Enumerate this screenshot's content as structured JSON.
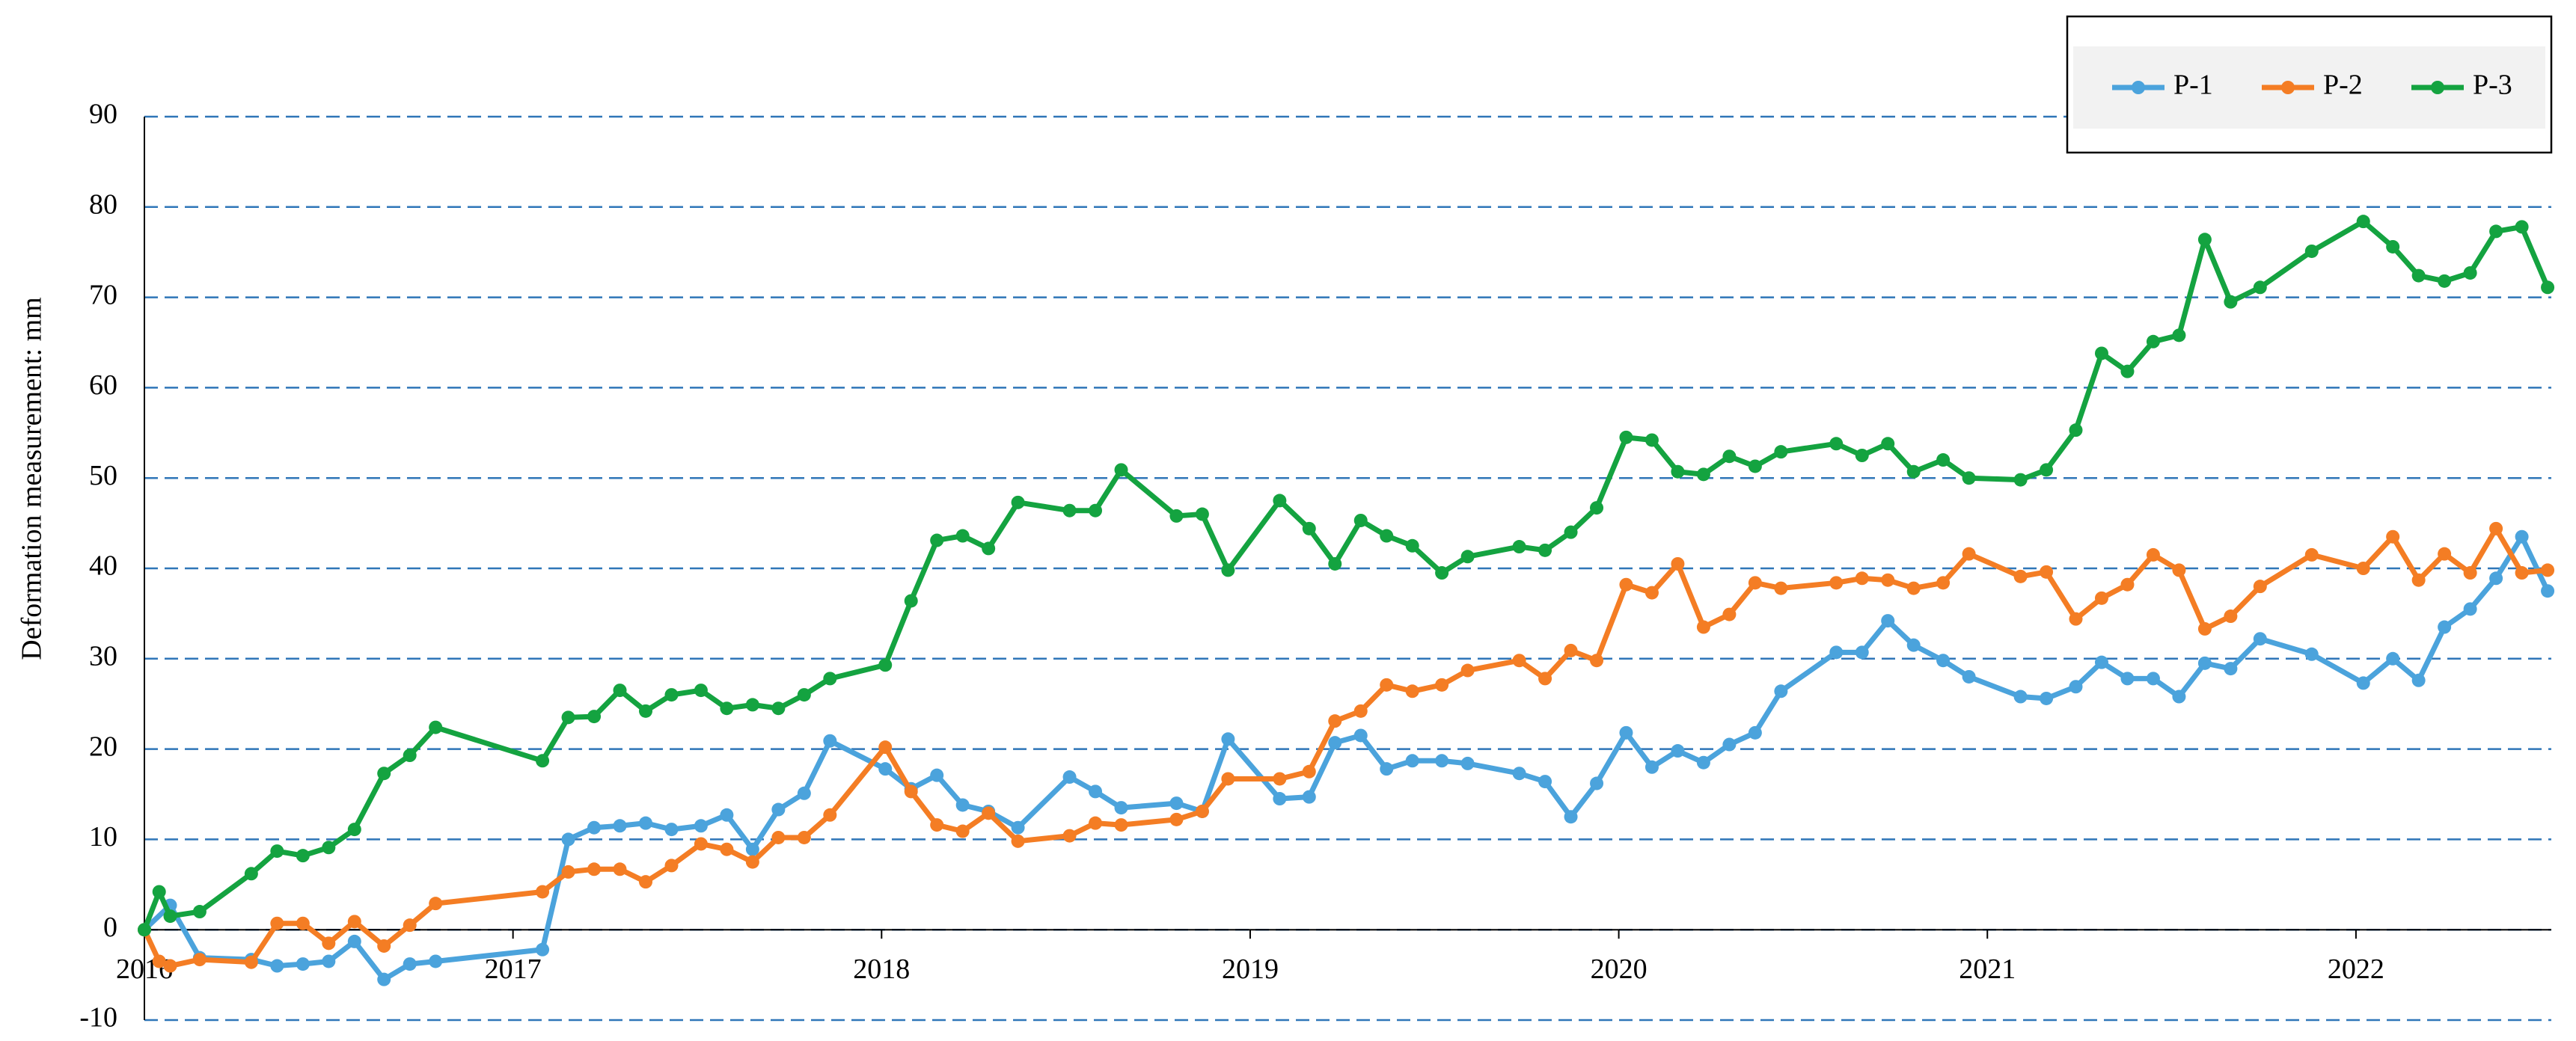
{
  "chart_data": {
    "type": "line",
    "y_label": "Deformation measurement: mm",
    "xlim": [
      2016,
      2022.53
    ],
    "xticks": [
      2016,
      2017,
      2018,
      2019,
      2020,
      2021,
      2022
    ],
    "ylim": [
      -10,
      90
    ],
    "yticks": [
      -10,
      0,
      10,
      20,
      30,
      40,
      50,
      60,
      70,
      80,
      90
    ],
    "grid": true,
    "legend": "upper right",
    "series": [
      {
        "name": "P-1",
        "color": "#4ba3dc",
        "x": [
          2016.0,
          2016.07,
          2016.15,
          2016.29,
          2016.36,
          2016.43,
          2016.5,
          2016.57,
          2016.65,
          2016.72,
          2016.79,
          2017.08,
          2017.15,
          2017.22,
          2017.29,
          2017.36,
          2017.43,
          2017.51,
          2017.58,
          2017.65,
          2017.72,
          2017.79,
          2017.86,
          2018.01,
          2018.08,
          2018.15,
          2018.22,
          2018.29,
          2018.37,
          2018.51,
          2018.58,
          2018.65,
          2018.8,
          2018.87,
          2018.94,
          2019.08,
          2019.16,
          2019.23,
          2019.3,
          2019.37,
          2019.44,
          2019.52,
          2019.59,
          2019.73,
          2019.8,
          2019.87,
          2019.94,
          2020.02,
          2020.09,
          2020.16,
          2020.23,
          2020.3,
          2020.37,
          2020.44,
          2020.59,
          2020.66,
          2020.73,
          2020.8,
          2020.88,
          2020.95,
          2021.09,
          2021.16,
          2021.24,
          2021.31,
          2021.38,
          2021.45,
          2021.52,
          2021.59,
          2021.66,
          2021.74,
          2021.88,
          2022.02,
          2022.1,
          2022.17,
          2022.24,
          2022.31,
          2022.38,
          2022.45,
          2022.52
        ],
        "values": [
          0,
          2.7,
          -3.1,
          -3.3,
          -4.0,
          -3.8,
          -3.5,
          -1.3,
          -5.5,
          -3.8,
          -3.5,
          -2.2,
          10.0,
          11.3,
          11.5,
          11.8,
          11.1,
          11.5,
          12.7,
          8.9,
          13.3,
          15.1,
          20.9,
          17.8,
          15.6,
          17.1,
          13.8,
          13.1,
          11.3,
          16.9,
          15.3,
          13.5,
          14.0,
          13.1,
          21.1,
          14.5,
          14.7,
          20.7,
          21.5,
          17.8,
          18.7,
          18.7,
          18.4,
          17.3,
          16.4,
          12.5,
          16.2,
          21.8,
          18.0,
          19.8,
          18.5,
          20.5,
          21.8,
          26.4,
          30.7,
          30.7,
          34.2,
          31.5,
          29.8,
          28.0,
          25.8,
          25.6,
          26.9,
          29.6,
          27.8,
          27.8,
          25.8,
          29.5,
          28.9,
          32.2,
          30.5,
          27.3,
          30.0,
          27.6,
          33.5,
          35.5,
          38.9,
          43.5,
          37.5
        ]
      },
      {
        "name": "P-2",
        "color": "#f47d24",
        "x": [
          2016.0,
          2016.04,
          2016.07,
          2016.15,
          2016.29,
          2016.36,
          2016.43,
          2016.5,
          2016.57,
          2016.65,
          2016.72,
          2016.79,
          2017.08,
          2017.15,
          2017.22,
          2017.29,
          2017.36,
          2017.43,
          2017.51,
          2017.58,
          2017.65,
          2017.72,
          2017.79,
          2017.86,
          2018.01,
          2018.08,
          2018.15,
          2018.22,
          2018.29,
          2018.37,
          2018.51,
          2018.58,
          2018.65,
          2018.8,
          2018.87,
          2018.94,
          2019.08,
          2019.16,
          2019.23,
          2019.3,
          2019.37,
          2019.44,
          2019.52,
          2019.59,
          2019.73,
          2019.8,
          2019.87,
          2019.94,
          2020.02,
          2020.09,
          2020.16,
          2020.23,
          2020.3,
          2020.37,
          2020.44,
          2020.59,
          2020.66,
          2020.73,
          2020.8,
          2020.88,
          2020.95,
          2021.09,
          2021.16,
          2021.24,
          2021.31,
          2021.38,
          2021.45,
          2021.52,
          2021.59,
          2021.66,
          2021.74,
          2021.88,
          2022.02,
          2022.1,
          2022.17,
          2022.24,
          2022.31,
          2022.38,
          2022.45,
          2022.52
        ],
        "values": [
          0,
          -3.5,
          -4.0,
          -3.3,
          -3.6,
          0.7,
          0.7,
          -1.5,
          0.9,
          -1.8,
          0.5,
          2.9,
          4.2,
          6.4,
          6.7,
          6.7,
          5.3,
          7.1,
          9.5,
          8.9,
          7.5,
          10.2,
          10.2,
          12.7,
          20.2,
          15.3,
          11.6,
          10.9,
          12.9,
          9.8,
          10.4,
          11.8,
          11.6,
          12.2,
          13.1,
          16.7,
          16.7,
          17.5,
          23.1,
          24.2,
          27.1,
          26.4,
          27.1,
          28.7,
          29.8,
          27.8,
          30.9,
          29.8,
          38.2,
          37.3,
          40.5,
          33.5,
          34.9,
          38.4,
          37.8,
          38.4,
          38.9,
          38.7,
          37.8,
          38.4,
          41.6,
          39.1,
          39.6,
          34.4,
          36.7,
          38.2,
          41.5,
          39.8,
          33.3,
          34.7,
          38.0,
          41.5,
          40.0,
          43.5,
          38.7,
          41.6,
          39.5,
          44.4,
          39.5,
          39.8
        ]
      },
      {
        "name": "P-3",
        "color": "#14a340",
        "x": [
          2016.0,
          2016.04,
          2016.07,
          2016.15,
          2016.29,
          2016.36,
          2016.43,
          2016.5,
          2016.57,
          2016.65,
          2016.72,
          2016.79,
          2017.08,
          2017.15,
          2017.22,
          2017.29,
          2017.36,
          2017.43,
          2017.51,
          2017.58,
          2017.65,
          2017.72,
          2017.79,
          2017.86,
          2018.01,
          2018.08,
          2018.15,
          2018.22,
          2018.29,
          2018.37,
          2018.51,
          2018.58,
          2018.65,
          2018.8,
          2018.87,
          2018.94,
          2019.08,
          2019.16,
          2019.23,
          2019.3,
          2019.37,
          2019.44,
          2019.52,
          2019.59,
          2019.73,
          2019.8,
          2019.87,
          2019.94,
          2020.02,
          2020.09,
          2020.16,
          2020.23,
          2020.3,
          2020.37,
          2020.44,
          2020.59,
          2020.66,
          2020.73,
          2020.8,
          2020.88,
          2020.95,
          2021.09,
          2021.16,
          2021.24,
          2021.31,
          2021.38,
          2021.45,
          2021.52,
          2021.59,
          2021.66,
          2021.74,
          2021.88,
          2022.02,
          2022.1,
          2022.17,
          2022.24,
          2022.31,
          2022.38,
          2022.45,
          2022.52
        ],
        "values": [
          0,
          4.2,
          1.5,
          2.0,
          6.2,
          8.7,
          8.2,
          9.1,
          11.1,
          17.3,
          19.3,
          22.4,
          18.7,
          23.5,
          23.6,
          26.5,
          24.2,
          26.0,
          26.5,
          24.5,
          24.9,
          24.5,
          26.0,
          27.8,
          29.3,
          36.4,
          43.1,
          43.6,
          42.2,
          47.3,
          46.4,
          46.4,
          50.9,
          45.8,
          46.0,
          39.8,
          47.5,
          44.4,
          40.5,
          45.3,
          43.6,
          42.5,
          39.5,
          41.3,
          42.4,
          42.0,
          44.0,
          46.7,
          54.5,
          54.2,
          50.7,
          50.4,
          52.4,
          51.3,
          52.9,
          53.8,
          52.5,
          53.8,
          50.7,
          52.0,
          50.0,
          49.8,
          50.9,
          55.3,
          63.8,
          61.8,
          65.1,
          65.8,
          76.4,
          69.5,
          71.1,
          75.1,
          78.4,
          75.6,
          72.4,
          71.8,
          72.7,
          77.3,
          77.8,
          71.1
        ]
      }
    ]
  }
}
